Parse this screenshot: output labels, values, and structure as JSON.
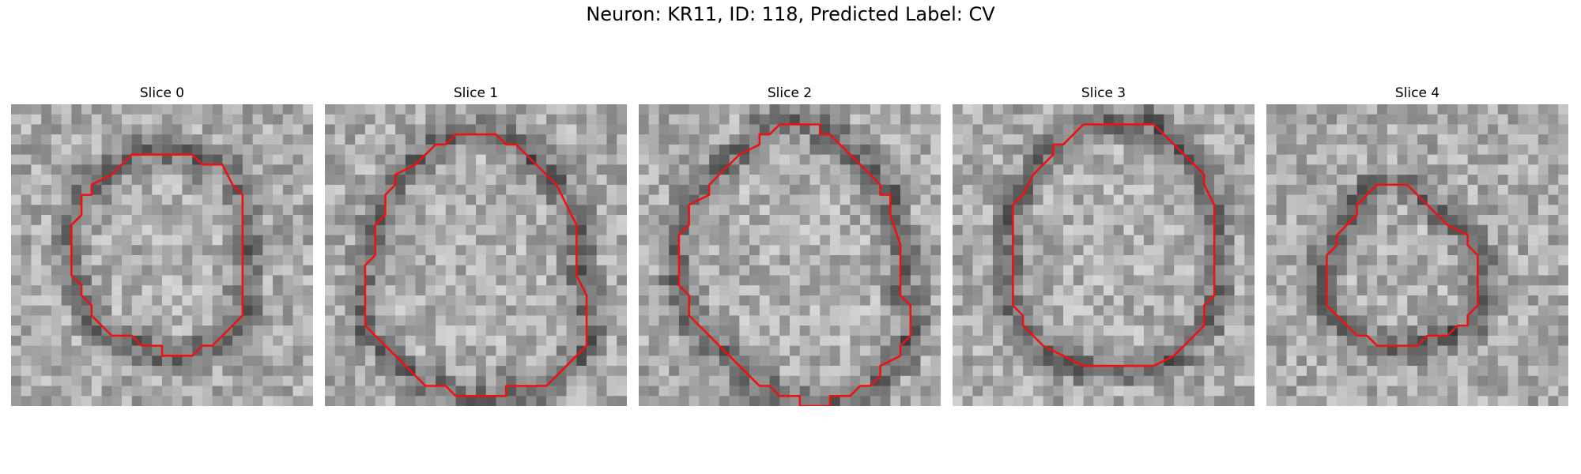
{
  "figure": {
    "title": "Neuron: KR11, ID: 118, Predicted Label: CV"
  },
  "colors": {
    "contour": "#ee1111",
    "background": "#ffffff"
  },
  "image_grid": {
    "cells": 30,
    "colormap": "gray"
  },
  "slices": [
    {
      "label": "Slice 0",
      "contour": [
        [
          12,
          5
        ],
        [
          18,
          5
        ],
        [
          19,
          6
        ],
        [
          21,
          6
        ],
        [
          22,
          8
        ],
        [
          23,
          9
        ],
        [
          23,
          11
        ],
        [
          23,
          21
        ],
        [
          22,
          22
        ],
        [
          20,
          24
        ],
        [
          19,
          24
        ],
        [
          18,
          25
        ],
        [
          15,
          25
        ],
        [
          15,
          24
        ],
        [
          13,
          24
        ],
        [
          12,
          23
        ],
        [
          10,
          23
        ],
        [
          9,
          22
        ],
        [
          8,
          21
        ],
        [
          8,
          20
        ],
        [
          7,
          19
        ],
        [
          7,
          18
        ],
        [
          6,
          17
        ],
        [
          6,
          12
        ],
        [
          7,
          11
        ],
        [
          7,
          9
        ],
        [
          8,
          9
        ],
        [
          8,
          8
        ],
        [
          10,
          7
        ],
        [
          11,
          6
        ]
      ]
    },
    {
      "label": "Slice 1",
      "contour": [
        [
          14,
          3
        ],
        [
          17,
          3
        ],
        [
          18,
          4
        ],
        [
          19,
          4
        ],
        [
          20,
          5
        ],
        [
          21,
          6
        ],
        [
          22,
          7
        ],
        [
          23,
          8
        ],
        [
          24,
          10
        ],
        [
          25,
          12
        ],
        [
          25,
          14
        ],
        [
          25,
          17
        ],
        [
          26,
          19
        ],
        [
          26,
          24
        ],
        [
          25,
          25
        ],
        [
          24,
          26
        ],
        [
          22,
          28
        ],
        [
          18,
          28
        ],
        [
          18,
          29
        ],
        [
          13,
          29
        ],
        [
          12,
          28
        ],
        [
          10,
          28
        ],
        [
          9,
          27
        ],
        [
          8,
          26
        ],
        [
          7,
          25
        ],
        [
          6,
          24
        ],
        [
          5,
          23
        ],
        [
          4,
          22
        ],
        [
          4,
          18
        ],
        [
          4,
          16
        ],
        [
          5,
          15
        ],
        [
          5,
          12
        ],
        [
          6,
          11
        ],
        [
          6,
          9
        ],
        [
          7,
          8
        ],
        [
          7,
          7
        ],
        [
          9,
          6
        ],
        [
          10,
          5
        ],
        [
          11,
          4
        ],
        [
          12,
          4
        ],
        [
          13,
          3
        ]
      ]
    },
    {
      "label": "Slice 2",
      "contour": [
        [
          14,
          2
        ],
        [
          18,
          2
        ],
        [
          18,
          3
        ],
        [
          19,
          3
        ],
        [
          20,
          4
        ],
        [
          21,
          5
        ],
        [
          22,
          6
        ],
        [
          23,
          7
        ],
        [
          24,
          8
        ],
        [
          24,
          9
        ],
        [
          25,
          9
        ],
        [
          25,
          11
        ],
        [
          26,
          14
        ],
        [
          26,
          19
        ],
        [
          27,
          20
        ],
        [
          27,
          23
        ],
        [
          26,
          24
        ],
        [
          26,
          25
        ],
        [
          24,
          26
        ],
        [
          24,
          27
        ],
        [
          23,
          28
        ],
        [
          22,
          28
        ],
        [
          21,
          29
        ],
        [
          19,
          29
        ],
        [
          19,
          30
        ],
        [
          16,
          30
        ],
        [
          16,
          29
        ],
        [
          14,
          29
        ],
        [
          13,
          28
        ],
        [
          12,
          28
        ],
        [
          11,
          27
        ],
        [
          10,
          26
        ],
        [
          9,
          25
        ],
        [
          8,
          24
        ],
        [
          7,
          23
        ],
        [
          6,
          22
        ],
        [
          5,
          21
        ],
        [
          5,
          19
        ],
        [
          4,
          18
        ],
        [
          4,
          13
        ],
        [
          5,
          12
        ],
        [
          5,
          10
        ],
        [
          7,
          9
        ],
        [
          7,
          8
        ],
        [
          8,
          7
        ],
        [
          9,
          6
        ],
        [
          10,
          5
        ],
        [
          12,
          4
        ],
        [
          12,
          3
        ],
        [
          13,
          3
        ]
      ]
    },
    {
      "label": "Slice 3",
      "contour": [
        [
          13,
          2
        ],
        [
          20,
          2
        ],
        [
          22,
          4
        ],
        [
          23,
          5
        ],
        [
          24,
          6
        ],
        [
          25,
          7
        ],
        [
          25,
          8
        ],
        [
          26,
          10
        ],
        [
          26,
          19
        ],
        [
          25,
          20
        ],
        [
          25,
          22
        ],
        [
          24,
          23
        ],
        [
          23,
          24
        ],
        [
          22,
          25
        ],
        [
          20,
          26
        ],
        [
          17,
          26
        ],
        [
          13,
          26
        ],
        [
          11,
          25
        ],
        [
          9,
          24
        ],
        [
          8,
          23
        ],
        [
          7,
          22
        ],
        [
          7,
          21
        ],
        [
          6,
          20
        ],
        [
          6,
          19
        ],
        [
          6,
          10
        ],
        [
          7,
          9
        ],
        [
          8,
          7
        ],
        [
          9,
          6
        ],
        [
          10,
          5
        ],
        [
          10,
          4
        ],
        [
          11,
          4
        ],
        [
          12,
          3
        ]
      ]
    },
    {
      "label": "Slice 4",
      "contour": [
        [
          11,
          8
        ],
        [
          13,
          8
        ],
        [
          14,
          8
        ],
        [
          15,
          9
        ],
        [
          16,
          10
        ],
        [
          17,
          11
        ],
        [
          18,
          12
        ],
        [
          20,
          13
        ],
        [
          20,
          14
        ],
        [
          21,
          15
        ],
        [
          21,
          18
        ],
        [
          21,
          20
        ],
        [
          20,
          21
        ],
        [
          20,
          22
        ],
        [
          19,
          22
        ],
        [
          18,
          23
        ],
        [
          16,
          23
        ],
        [
          15,
          24
        ],
        [
          11,
          24
        ],
        [
          10,
          23
        ],
        [
          9,
          23
        ],
        [
          8,
          22
        ],
        [
          7,
          21
        ],
        [
          6,
          20
        ],
        [
          6,
          15
        ],
        [
          7,
          14
        ],
        [
          7,
          13
        ],
        [
          8,
          12
        ],
        [
          9,
          11
        ],
        [
          9,
          10
        ],
        [
          10,
          9
        ]
      ]
    }
  ]
}
